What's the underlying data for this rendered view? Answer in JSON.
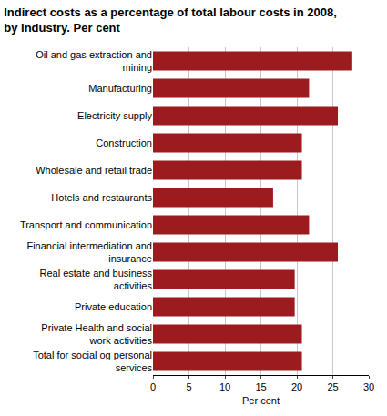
{
  "chart_data": {
    "type": "bar",
    "orientation": "horizontal",
    "title": "Indirect costs as a percentage of total labour costs in 2008, by industry. Per cent",
    "x_label": "Per cent",
    "categories": [
      "Oil and gas extraction and mining",
      "Manufacturing",
      "Electricity supply",
      "Construction",
      "Wholesale and retail trade",
      "Hotels and restaurants",
      "Transport and communication",
      "Financial intermediation and insurance",
      "Real estate and business activities",
      "Private education",
      "Private Health and social work activities",
      "Total for social og personal services"
    ],
    "values": [
      27.7,
      21.7,
      25.7,
      20.7,
      20.7,
      16.7,
      21.7,
      25.7,
      19.7,
      19.7,
      20.7,
      20.7
    ],
    "color": "#9b1b1f",
    "xlim": [
      0,
      30
    ],
    "xticks": [
      0,
      5,
      10,
      15,
      20,
      25,
      30
    ],
    "grid": true
  }
}
